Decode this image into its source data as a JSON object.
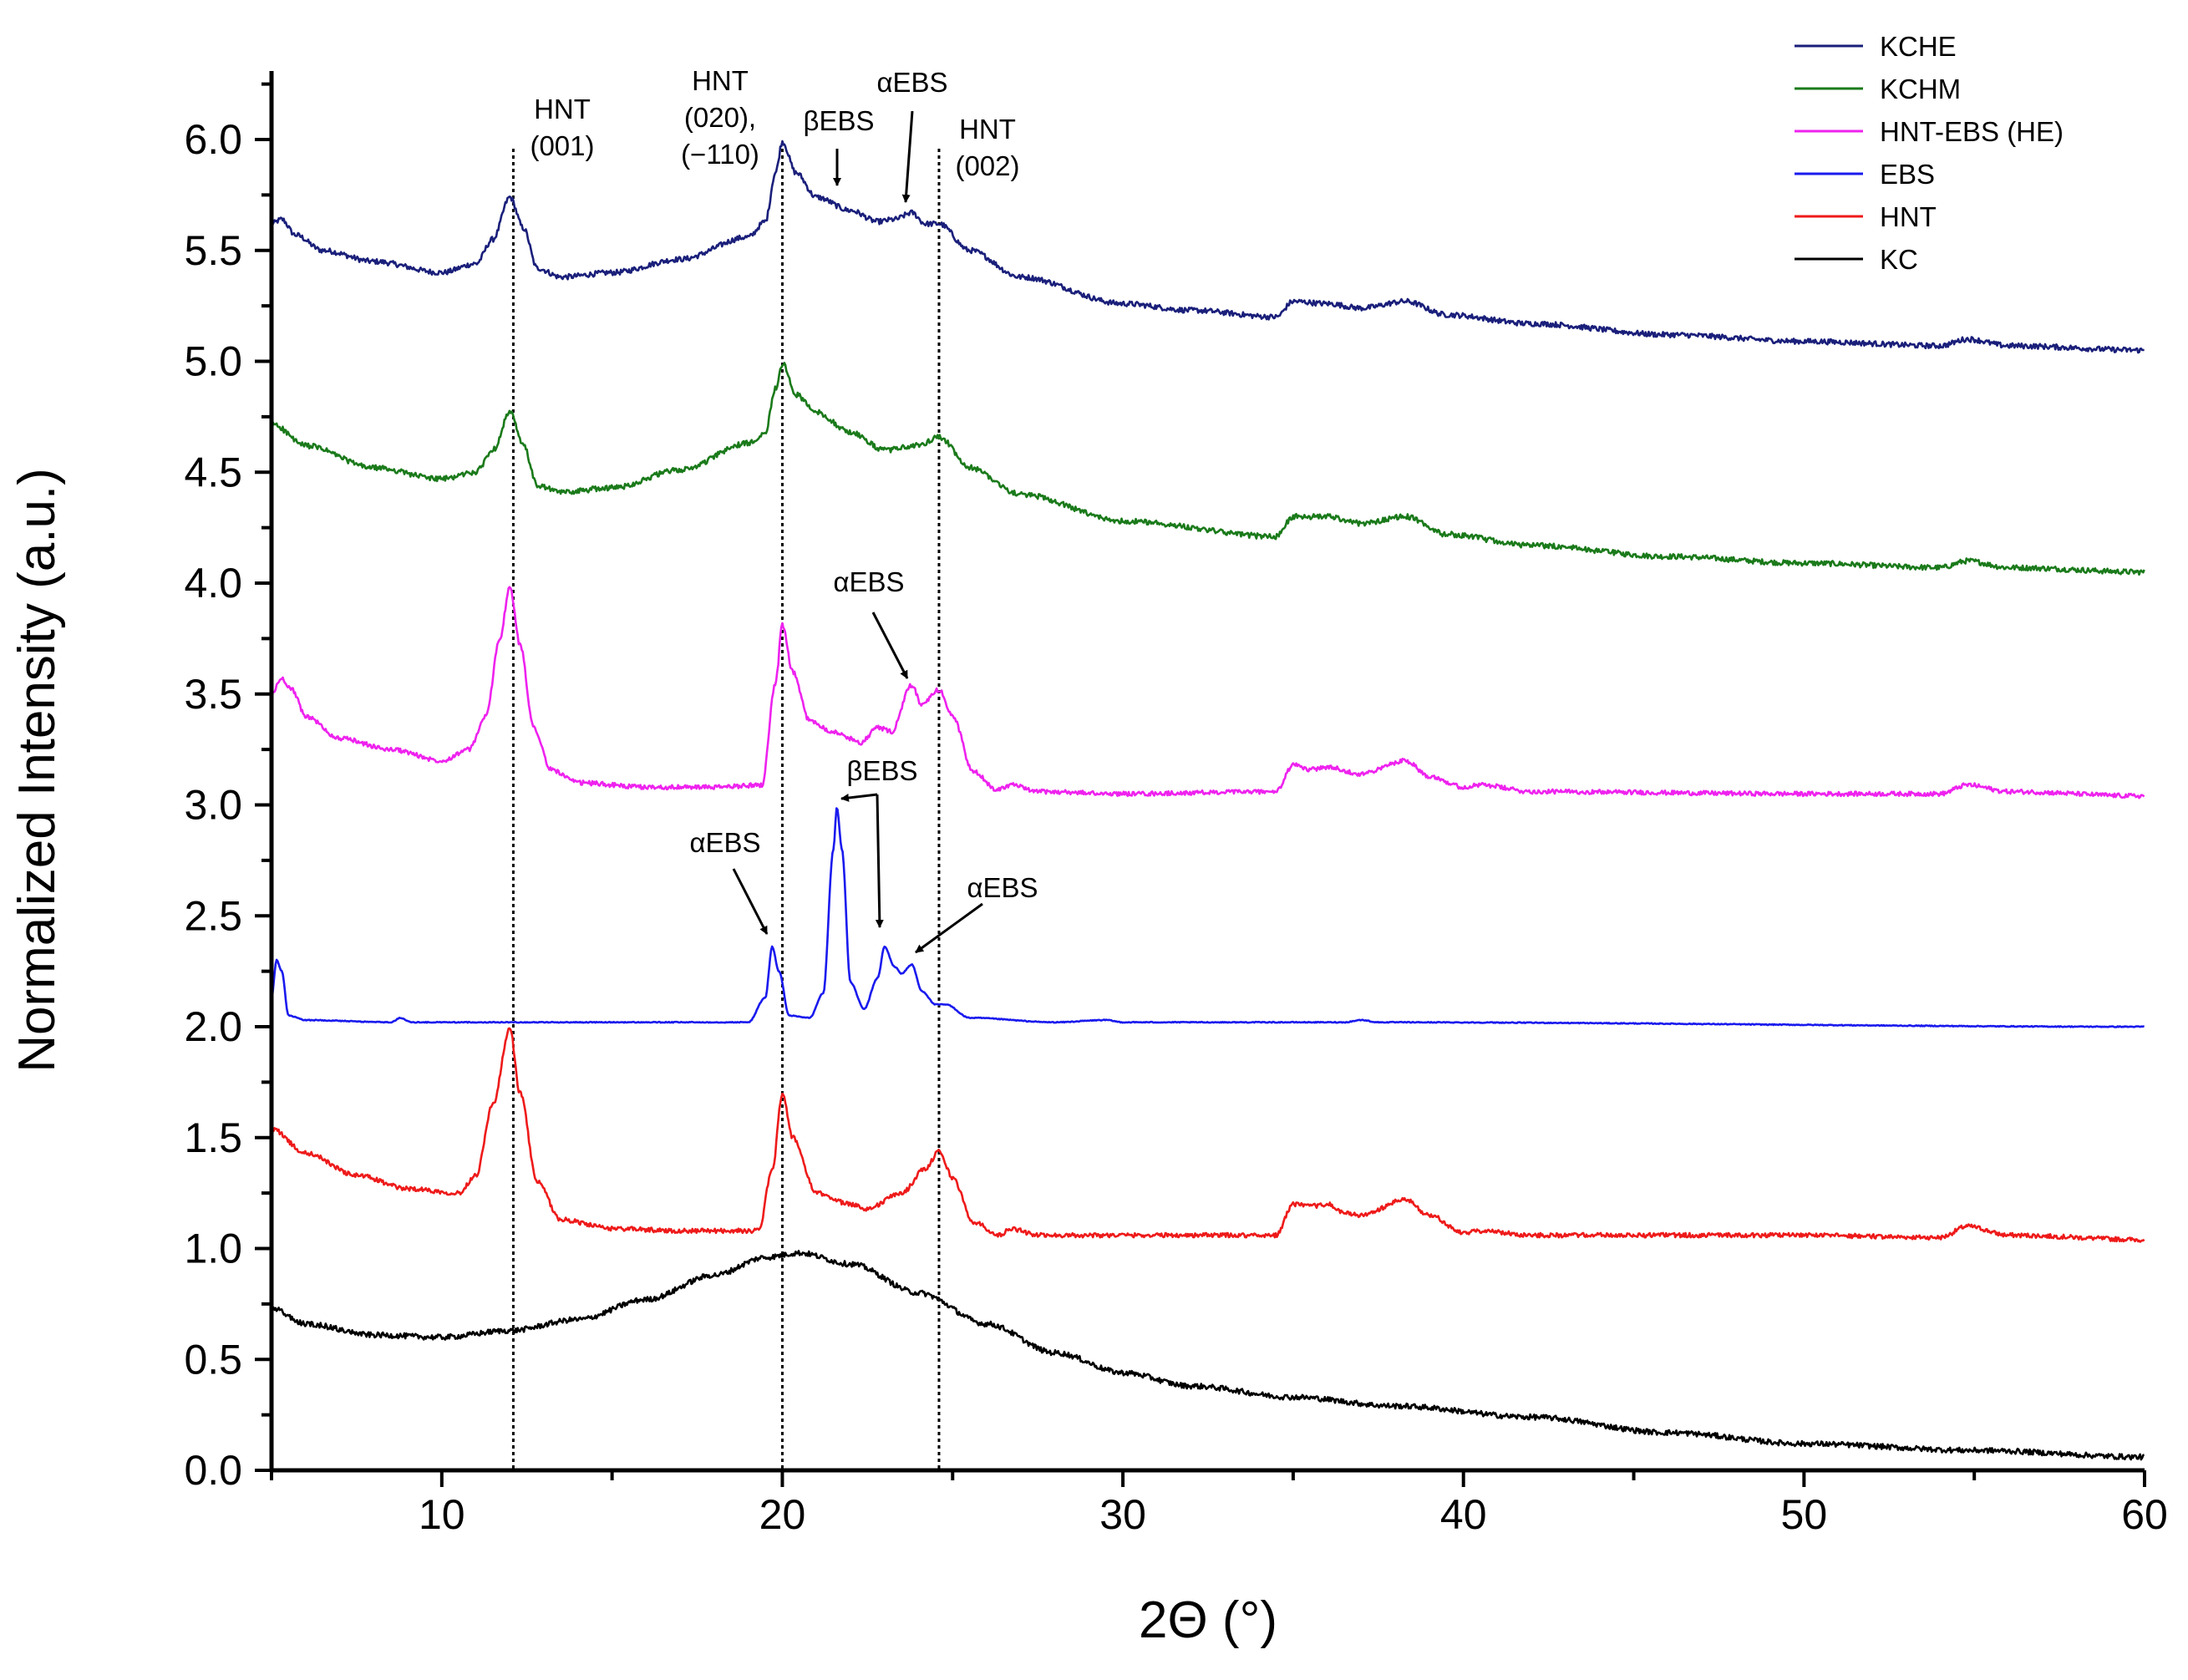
{
  "chart_data": {
    "type": "line",
    "title": "",
    "xlabel": "2Θ (°)",
    "ylabel": "Normalized Intensity (a.u.)",
    "xlim": [
      5,
      60
    ],
    "ylim": [
      0,
      6.25
    ],
    "x_ticks": [
      10,
      20,
      30,
      40,
      50,
      60
    ],
    "y_ticks": [
      0.0,
      0.5,
      1.0,
      1.5,
      2.0,
      2.5,
      3.0,
      3.5,
      4.0,
      4.5,
      5.0,
      5.5,
      6.0
    ],
    "x_tick_labels": [
      "10",
      "20",
      "30",
      "40",
      "50",
      "60"
    ],
    "y_tick_labels": [
      "0.0",
      "0.5",
      "1.0",
      "1.5",
      "2.0",
      "2.5",
      "3.0",
      "3.5",
      "4.0",
      "4.5",
      "5.0",
      "5.5",
      "6.0"
    ],
    "grid": false,
    "legend_position": "top-right",
    "reference_lines_x": [
      12.1,
      20.0,
      24.6
    ],
    "series": [
      {
        "name": "KCHE",
        "color": "#1a1f7a",
        "noise": 0.012,
        "points": [
          [
            5.0,
            5.62
          ],
          [
            5.3,
            5.64
          ],
          [
            5.7,
            5.57
          ],
          [
            6.5,
            5.5
          ],
          [
            8.0,
            5.45
          ],
          [
            10.0,
            5.4
          ],
          [
            11.0,
            5.44
          ],
          [
            11.5,
            5.55
          ],
          [
            12.0,
            5.74
          ],
          [
            12.4,
            5.6
          ],
          [
            12.8,
            5.42
          ],
          [
            13.5,
            5.38
          ],
          [
            15.0,
            5.4
          ],
          [
            17.0,
            5.46
          ],
          [
            19.0,
            5.56
          ],
          [
            19.5,
            5.63
          ],
          [
            19.8,
            5.85
          ],
          [
            20.0,
            5.99
          ],
          [
            20.4,
            5.85
          ],
          [
            21.0,
            5.74
          ],
          [
            22.0,
            5.68
          ],
          [
            22.8,
            5.63
          ],
          [
            23.3,
            5.64
          ],
          [
            23.8,
            5.67
          ],
          [
            24.2,
            5.62
          ],
          [
            24.6,
            5.62
          ],
          [
            25.5,
            5.5
          ],
          [
            27.0,
            5.38
          ],
          [
            30.0,
            5.26
          ],
          [
            32.0,
            5.23
          ],
          [
            34.5,
            5.2
          ],
          [
            35.0,
            5.27
          ],
          [
            36.0,
            5.26
          ],
          [
            37.0,
            5.24
          ],
          [
            38.3,
            5.27
          ],
          [
            39.5,
            5.21
          ],
          [
            42.0,
            5.17
          ],
          [
            46.0,
            5.12
          ],
          [
            50.0,
            5.09
          ],
          [
            54.0,
            5.07
          ],
          [
            54.8,
            5.1
          ],
          [
            56.0,
            5.07
          ],
          [
            60.0,
            5.05
          ]
        ]
      },
      {
        "name": "KCHM",
        "color": "#1a7a1a",
        "noise": 0.012,
        "points": [
          [
            5.0,
            4.72
          ],
          [
            6.0,
            4.62
          ],
          [
            8.0,
            4.52
          ],
          [
            10.0,
            4.47
          ],
          [
            11.0,
            4.5
          ],
          [
            11.5,
            4.6
          ],
          [
            12.0,
            4.77
          ],
          [
            12.4,
            4.62
          ],
          [
            12.8,
            4.44
          ],
          [
            13.5,
            4.41
          ],
          [
            15.0,
            4.43
          ],
          [
            17.0,
            4.51
          ],
          [
            19.0,
            4.63
          ],
          [
            19.5,
            4.68
          ],
          [
            19.8,
            4.88
          ],
          [
            20.0,
            4.99
          ],
          [
            20.4,
            4.85
          ],
          [
            21.0,
            4.77
          ],
          [
            22.0,
            4.68
          ],
          [
            23.0,
            4.6
          ],
          [
            24.0,
            4.62
          ],
          [
            24.6,
            4.66
          ],
          [
            25.5,
            4.52
          ],
          [
            27.0,
            4.4
          ],
          [
            30.0,
            4.28
          ],
          [
            34.5,
            4.21
          ],
          [
            35.0,
            4.3
          ],
          [
            36.0,
            4.3
          ],
          [
            37.0,
            4.27
          ],
          [
            38.3,
            4.3
          ],
          [
            39.5,
            4.22
          ],
          [
            42.0,
            4.17
          ],
          [
            46.0,
            4.12
          ],
          [
            50.0,
            4.09
          ],
          [
            54.0,
            4.07
          ],
          [
            54.8,
            4.1
          ],
          [
            56.0,
            4.07
          ],
          [
            60.0,
            4.05
          ]
        ]
      },
      {
        "name": "HNT-EBS (HE)",
        "color": "#ee22ee",
        "noise": 0.01,
        "points": [
          [
            5.0,
            3.5
          ],
          [
            5.3,
            3.57
          ],
          [
            5.6,
            3.52
          ],
          [
            6.0,
            3.4
          ],
          [
            7.0,
            3.3
          ],
          [
            8.5,
            3.25
          ],
          [
            10.0,
            3.2
          ],
          [
            10.8,
            3.25
          ],
          [
            11.3,
            3.4
          ],
          [
            11.7,
            3.75
          ],
          [
            12.0,
            3.98
          ],
          [
            12.3,
            3.72
          ],
          [
            12.7,
            3.35
          ],
          [
            13.2,
            3.16
          ],
          [
            14.0,
            3.1
          ],
          [
            16.0,
            3.08
          ],
          [
            18.0,
            3.08
          ],
          [
            19.4,
            3.09
          ],
          [
            19.8,
            3.55
          ],
          [
            20.0,
            3.81
          ],
          [
            20.3,
            3.6
          ],
          [
            20.8,
            3.38
          ],
          [
            21.5,
            3.33
          ],
          [
            22.0,
            3.3
          ],
          [
            22.3,
            3.28
          ],
          [
            22.8,
            3.35
          ],
          [
            23.2,
            3.33
          ],
          [
            23.8,
            3.54
          ],
          [
            24.1,
            3.45
          ],
          [
            24.6,
            3.52
          ],
          [
            25.0,
            3.4
          ],
          [
            25.6,
            3.15
          ],
          [
            26.3,
            3.07
          ],
          [
            26.7,
            3.09
          ],
          [
            27.5,
            3.06
          ],
          [
            30.0,
            3.05
          ],
          [
            34.5,
            3.06
          ],
          [
            35.0,
            3.18
          ],
          [
            35.5,
            3.16
          ],
          [
            36.0,
            3.17
          ],
          [
            37.0,
            3.14
          ],
          [
            38.3,
            3.2
          ],
          [
            39.0,
            3.13
          ],
          [
            40.0,
            3.08
          ],
          [
            40.5,
            3.09
          ],
          [
            42.0,
            3.06
          ],
          [
            50.0,
            3.05
          ],
          [
            54.0,
            3.05
          ],
          [
            54.8,
            3.09
          ],
          [
            56.0,
            3.06
          ],
          [
            60.0,
            3.04
          ]
        ]
      },
      {
        "name": "EBS",
        "color": "#1a1aee",
        "noise": 0.002,
        "points": [
          [
            5.0,
            2.13
          ],
          [
            5.15,
            2.3
          ],
          [
            5.3,
            2.25
          ],
          [
            5.5,
            2.05
          ],
          [
            6.0,
            2.03
          ],
          [
            8.5,
            2.02
          ],
          [
            8.8,
            2.04
          ],
          [
            9.1,
            2.02
          ],
          [
            14.0,
            2.02
          ],
          [
            19.0,
            2.02
          ],
          [
            19.5,
            2.13
          ],
          [
            19.7,
            2.36
          ],
          [
            19.9,
            2.25
          ],
          [
            20.2,
            2.05
          ],
          [
            20.8,
            2.04
          ],
          [
            21.2,
            2.15
          ],
          [
            21.5,
            2.8
          ],
          [
            21.6,
            2.99
          ],
          [
            21.75,
            2.8
          ],
          [
            22.0,
            2.2
          ],
          [
            22.4,
            2.08
          ],
          [
            22.8,
            2.22
          ],
          [
            23.0,
            2.36
          ],
          [
            23.3,
            2.27
          ],
          [
            23.5,
            2.24
          ],
          [
            23.8,
            2.28
          ],
          [
            24.1,
            2.16
          ],
          [
            24.5,
            2.1
          ],
          [
            24.8,
            2.1
          ],
          [
            25.5,
            2.04
          ],
          [
            28.0,
            2.02
          ],
          [
            29.5,
            2.03
          ],
          [
            30.0,
            2.02
          ],
          [
            36.5,
            2.02
          ],
          [
            37.0,
            2.03
          ],
          [
            37.5,
            2.02
          ],
          [
            60.0,
            2.0
          ]
        ]
      },
      {
        "name": "HNT",
        "color": "#ee1a1a",
        "noise": 0.01,
        "points": [
          [
            5.0,
            1.54
          ],
          [
            6.0,
            1.43
          ],
          [
            7.5,
            1.33
          ],
          [
            9.0,
            1.27
          ],
          [
            10.5,
            1.25
          ],
          [
            11.0,
            1.33
          ],
          [
            11.5,
            1.65
          ],
          [
            12.0,
            1.99
          ],
          [
            12.3,
            1.7
          ],
          [
            12.8,
            1.3
          ],
          [
            13.5,
            1.13
          ],
          [
            15.0,
            1.09
          ],
          [
            17.0,
            1.08
          ],
          [
            19.3,
            1.08
          ],
          [
            19.7,
            1.35
          ],
          [
            20.0,
            1.7
          ],
          [
            20.3,
            1.5
          ],
          [
            21.0,
            1.25
          ],
          [
            22.0,
            1.2
          ],
          [
            22.5,
            1.18
          ],
          [
            23.5,
            1.25
          ],
          [
            24.2,
            1.36
          ],
          [
            24.6,
            1.44
          ],
          [
            25.0,
            1.32
          ],
          [
            25.6,
            1.12
          ],
          [
            26.4,
            1.06
          ],
          [
            26.7,
            1.09
          ],
          [
            27.5,
            1.06
          ],
          [
            34.5,
            1.06
          ],
          [
            35.0,
            1.2
          ],
          [
            35.5,
            1.19
          ],
          [
            36.0,
            1.2
          ],
          [
            36.5,
            1.16
          ],
          [
            37.0,
            1.15
          ],
          [
            38.3,
            1.22
          ],
          [
            39.0,
            1.15
          ],
          [
            40.0,
            1.07
          ],
          [
            40.5,
            1.08
          ],
          [
            42.0,
            1.06
          ],
          [
            50.0,
            1.06
          ],
          [
            54.0,
            1.05
          ],
          [
            54.8,
            1.1
          ],
          [
            56.0,
            1.06
          ],
          [
            60.0,
            1.04
          ]
        ]
      },
      {
        "name": "KC",
        "color": "#000000",
        "noise": 0.012,
        "points": [
          [
            5.0,
            0.73
          ],
          [
            6.0,
            0.66
          ],
          [
            8.0,
            0.61
          ],
          [
            10.0,
            0.6
          ],
          [
            12.0,
            0.63
          ],
          [
            14.0,
            0.68
          ],
          [
            16.0,
            0.77
          ],
          [
            18.0,
            0.88
          ],
          [
            19.5,
            0.96
          ],
          [
            20.5,
            0.98
          ],
          [
            22.0,
            0.93
          ],
          [
            24.0,
            0.8
          ],
          [
            26.0,
            0.66
          ],
          [
            28.0,
            0.53
          ],
          [
            30.0,
            0.44
          ],
          [
            32.0,
            0.38
          ],
          [
            35.0,
            0.33
          ],
          [
            38.0,
            0.29
          ],
          [
            42.0,
            0.24
          ],
          [
            46.0,
            0.17
          ],
          [
            50.0,
            0.12
          ],
          [
            55.0,
            0.09
          ],
          [
            60.0,
            0.06
          ]
        ]
      }
    ],
    "annotations": {
      "hnt_001": {
        "line1": "HNT",
        "line2": "(001)"
      },
      "hnt_020": {
        "line1": "HNT",
        "line2": "(020),",
        "line3": "(−110)"
      },
      "hnt_002": {
        "line1": "HNT",
        "line2": "(002)"
      },
      "top_beta_ebs": {
        "text": "βEBS",
        "x": 21.6,
        "y": 5.7
      },
      "top_alpha_ebs": {
        "text": "αEBS",
        "x": 23.8,
        "y": 5.67
      },
      "he_alpha_ebs": {
        "text": "αEBS",
        "x": 23.8,
        "y": 3.54
      },
      "ebs_alpha_left": {
        "text": "αEBS",
        "x": 19.7,
        "y": 2.36
      },
      "ebs_beta": {
        "text": "βEBS",
        "x1": 21.6,
        "y1": 2.99,
        "x2": 23.0,
        "y2": 2.36
      },
      "ebs_alpha_right": {
        "text": "αEBS",
        "x": 23.8,
        "y": 2.28
      }
    }
  }
}
